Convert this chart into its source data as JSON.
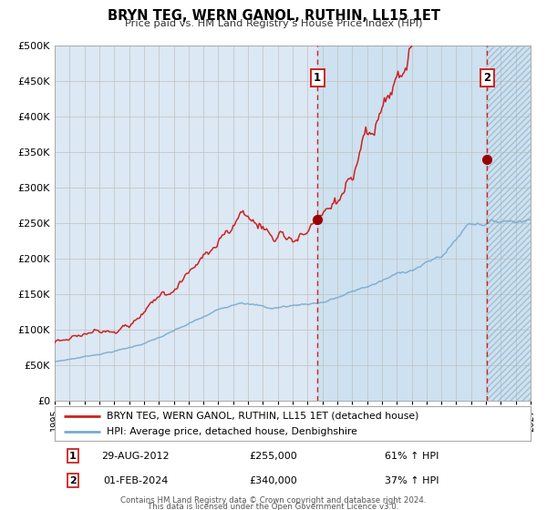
{
  "title": "BRYN TEG, WERN GANOL, RUTHIN, LL15 1ET",
  "subtitle": "Price paid vs. HM Land Registry’s House Price Index (HPI)",
  "legend_line1": "BRYN TEG, WERN GANOL, RUTHIN, LL15 1ET (detached house)",
  "legend_line2": "HPI: Average price, detached house, Denbighshire",
  "sale1_date": "29-AUG-2012",
  "sale1_price": 255000,
  "sale1_price_str": "£255,000",
  "sale1_pct": "61%",
  "sale2_date": "01-FEB-2024",
  "sale2_price": 340000,
  "sale2_price_str": "£340,000",
  "sale2_pct": "37%",
  "footnote1": "Contains HM Land Registry data © Crown copyright and database right 2024.",
  "footnote2": "This data is licensed under the Open Government Licence v3.0.",
  "hpi_color": "#7aabcf",
  "price_color": "#cc2222",
  "dot_color": "#990000",
  "bg_color": "#dce8f3",
  "grid_color": "#c0c0c0",
  "ylim": [
    0,
    500000
  ],
  "xlim_start": 1995.0,
  "xlim_end": 2027.0,
  "sale1_x": 2012.67,
  "sale2_x": 2024.08,
  "sale1_hpi_y": 158000,
  "sale2_hpi_y": 250000
}
